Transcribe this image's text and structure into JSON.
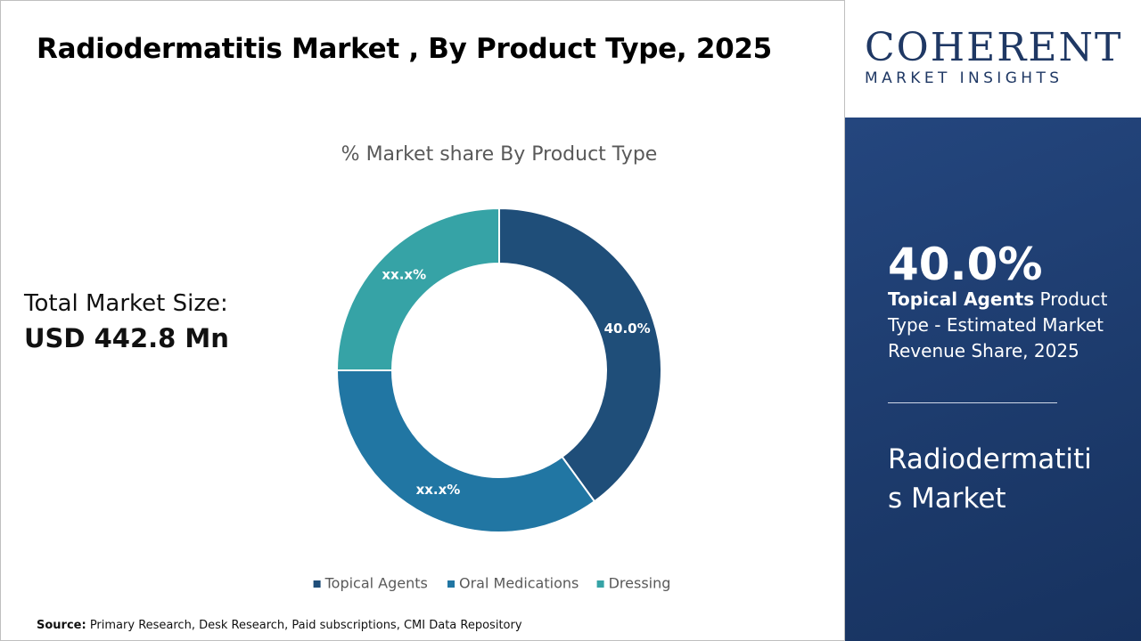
{
  "header": {
    "title": "Radiodermatitis Market , By Product Type, 2025"
  },
  "market_size": {
    "label": "Total Market Size:",
    "value": "USD 442.8 Mn"
  },
  "logo": {
    "name": "COHERENT",
    "tagline": "MARKET INSIGHTS"
  },
  "highlight": {
    "value": "40.0%",
    "segment": "Topical Agents",
    "description": " Product Type - Estimated Market Revenue Share, 2025",
    "market": "Radiodermatitis Market"
  },
  "source": {
    "label": "Source:",
    "text": " Primary Research, Desk Research, Paid subscriptions, CMI Data Repository"
  },
  "chart_data": {
    "type": "donut",
    "title": "% Market share By Product Type",
    "categories": [
      "Topical Agents",
      "Oral Medications",
      "Dressing"
    ],
    "values": [
      40.0,
      35,
      25
    ],
    "value_labels": [
      "40.0%",
      "xx.x%",
      "xx.x%"
    ],
    "colors": [
      "#1f4e79",
      "#2176a3",
      "#36a3a6"
    ],
    "legend": "bottom"
  }
}
